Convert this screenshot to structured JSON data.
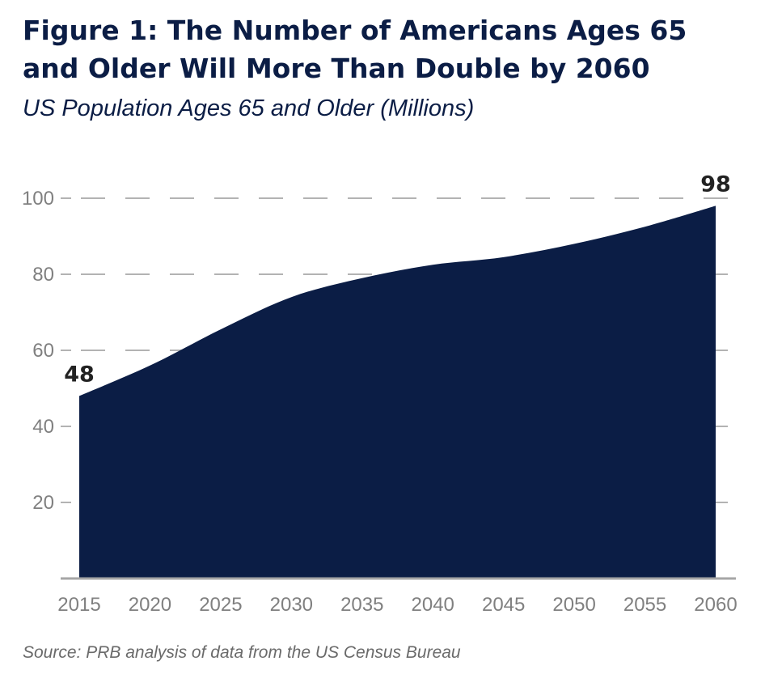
{
  "header": {
    "title": "Figure 1: The Number of Americans Ages 65 and Older Will More Than Double by 2060",
    "subtitle": "US Population Ages 65 and Older (Millions)"
  },
  "footer": {
    "source": "Source: PRB analysis of data from the US Census Bureau"
  },
  "colors": {
    "area_fill": "#0b1d45",
    "gridline": "#b3b3b3",
    "axis": "#a6a6a6",
    "tick_text": "#808080",
    "title_text": "#0b1d45"
  },
  "chart_data": {
    "type": "area",
    "title": "Figure 1: The Number of Americans Ages 65 and Older Will More Than Double by 2060",
    "subtitle": "US Population Ages 65 and Older (Millions)",
    "xlabel": "",
    "ylabel": "",
    "x": [
      2015,
      2020,
      2025,
      2030,
      2035,
      2040,
      2045,
      2050,
      2055,
      2060
    ],
    "series": [
      {
        "values": [
          48,
          56,
          65.5,
          74,
          79,
          82.5,
          84.5,
          88,
          92.5,
          98
        ]
      }
    ],
    "xlim": [
      2015,
      2060
    ],
    "ylim": [
      0,
      100
    ],
    "x_ticks": [
      "2015",
      "2020",
      "2025",
      "2030",
      "2035",
      "2040",
      "2045",
      "2050",
      "2055",
      "2060"
    ],
    "y_ticks": [
      "20",
      "40",
      "60",
      "80",
      "100"
    ],
    "grid": "dashed horizontal",
    "legend": "none",
    "annotations": [
      {
        "label": "48",
        "x": 2015,
        "y": 48
      },
      {
        "label": "98",
        "x": 2060,
        "y": 98
      }
    ]
  }
}
